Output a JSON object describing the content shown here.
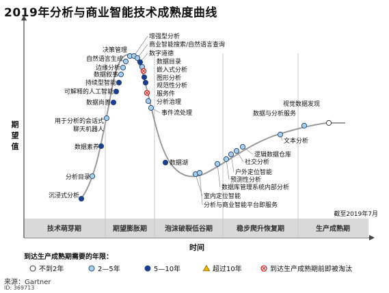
{
  "title": "2019年分析与商业智能技术成熟度曲线",
  "source": "来源：Gartner",
  "doc_id": "ID: 369713",
  "chart_data": {
    "type": "scatter",
    "subtype": "hype-cycle",
    "title": "2019年分析与商业智能技术成熟度曲线",
    "ylabel": "期望值",
    "xlabel": "时间",
    "date_note": "截至2019年7月",
    "phases": [
      "技术萌芽期",
      "期望膨胀期",
      "泡沫破裂低谷期",
      "稳步爬升恢复期",
      "生产成熟期"
    ],
    "legend_title": "到达生产成熟期需要的年限：",
    "legend": [
      {
        "key": "lt2",
        "label": "不到2年",
        "color": "#ffffff"
      },
      {
        "key": "y2_5",
        "label": "2—5年",
        "color": "#a9cfe6"
      },
      {
        "key": "y5_10",
        "label": "5—10年",
        "color": "#1b3d8f"
      },
      {
        "key": "gt10",
        "label": "超过10年",
        "color": "#f0b400"
      },
      {
        "key": "obsolete",
        "label": "到达生产成熟期前即被淘汰",
        "color": "#d62020"
      }
    ],
    "points": [
      {
        "name": "沉浸式分析",
        "cat": "y5_10"
      },
      {
        "name": "分析目录",
        "cat": "y2_5"
      },
      {
        "name": "数据素养",
        "cat": "y5_10"
      },
      {
        "name": "用于分析的会话式聊天机器人",
        "cat": "y2_5"
      },
      {
        "name": "数据尚善",
        "cat": "y5_10"
      },
      {
        "name": "可解释的人工智能",
        "cat": "y5_10"
      },
      {
        "name": "持续型智能",
        "cat": "y5_10"
      },
      {
        "name": "数据叙事",
        "cat": "y2_5"
      },
      {
        "name": "边缘分析",
        "cat": "y2_5"
      },
      {
        "name": "自然语言生成",
        "cat": "y2_5"
      },
      {
        "name": "决策管理",
        "cat": "y2_5"
      },
      {
        "name": "增强型分析",
        "cat": "y2_5"
      },
      {
        "name": "商业智能搜索/自然语言查询",
        "cat": "y2_5"
      },
      {
        "name": "数字道德",
        "cat": "y5_10"
      },
      {
        "name": "数据目录",
        "cat": "y2_5"
      },
      {
        "name": "嵌入式分析",
        "cat": "obsolete"
      },
      {
        "name": "图形分析",
        "cat": "y5_10"
      },
      {
        "name": "规范性分析",
        "cat": "y5_10"
      },
      {
        "name": "服务件",
        "cat": "obsolete"
      },
      {
        "name": "分析治理",
        "cat": "y2_5"
      },
      {
        "name": "事件流处理",
        "cat": "y2_5"
      },
      {
        "name": "数据湖",
        "cat": "y5_10"
      },
      {
        "name": "室内定位智能",
        "cat": "y2_5"
      },
      {
        "name": "分析与商业智能平台即服务",
        "cat": "y2_5"
      },
      {
        "name": "数据库管理系统内部分析",
        "cat": "y2_5"
      },
      {
        "name": "预测性分析",
        "cat": "y2_5"
      },
      {
        "name": "户外定位智能",
        "cat": "y2_5"
      },
      {
        "name": "社交分析",
        "cat": "y2_5"
      },
      {
        "name": "逻辑数据仓库",
        "cat": "y2_5"
      },
      {
        "name": "文本分析",
        "cat": "y2_5"
      },
      {
        "name": "数据与分析服务",
        "cat": "y2_5"
      },
      {
        "name": "视觉数据发现",
        "cat": "lt2"
      }
    ]
  }
}
